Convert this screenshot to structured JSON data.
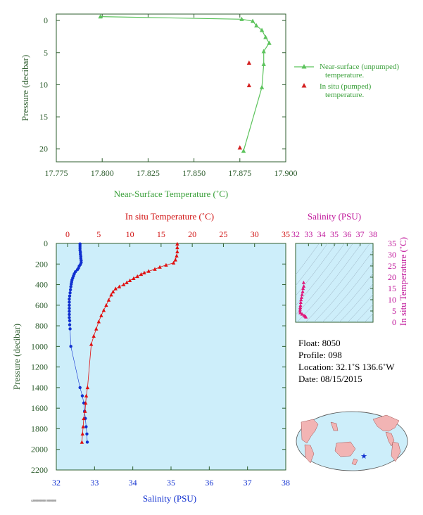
{
  "chart_data": [
    {
      "type": "line",
      "xlabel": "Near-Surface Temperature (˚C)",
      "ylabel": "Pressure (decibar)",
      "xlim": [
        17.775,
        17.9
      ],
      "ylim": [
        22,
        -1
      ],
      "xticks": [
        "17.775",
        "17.800",
        "17.825",
        "17.850",
        "17.875",
        "17.900"
      ],
      "yticks": [
        "0",
        "5",
        "10",
        "15",
        "20"
      ],
      "legend_position": "right",
      "series": [
        {
          "name": "Near-surface (unpumped) temperature.",
          "color": "#5cc35c",
          "marker": "triangle",
          "points": [
            {
              "t": 17.799,
              "p": -0.6
            },
            {
              "t": 17.876,
              "p": -0.2
            },
            {
              "t": 17.882,
              "p": 0.1
            },
            {
              "t": 17.884,
              "p": 0.8
            },
            {
              "t": 17.887,
              "p": 1.5
            },
            {
              "t": 17.889,
              "p": 2.6
            },
            {
              "t": 17.891,
              "p": 3.5
            },
            {
              "t": 17.888,
              "p": 4.8
            },
            {
              "t": 17.888,
              "p": 6.8
            },
            {
              "t": 17.887,
              "p": 10.4
            },
            {
              "t": 17.877,
              "p": 20.3
            }
          ]
        },
        {
          "name": "In situ (pumped) temperature.",
          "color": "#d42020",
          "marker": "triangle",
          "points": [
            {
              "t": 17.88,
              "p": 6.6
            },
            {
              "t": 17.88,
              "p": 10.1
            },
            {
              "t": 17.875,
              "p": 19.8
            }
          ]
        }
      ]
    },
    {
      "type": "line",
      "xlabel": "Salinity (PSU)",
      "x2label": "In situ Temperature (˚C)",
      "ylabel": "Pressure (decibar)",
      "xlim": [
        32,
        38
      ],
      "x2lim": [
        0,
        35
      ],
      "ylim": [
        2200,
        0
      ],
      "xticks": [
        "32",
        "33",
        "34",
        "35",
        "36",
        "37",
        "38"
      ],
      "x2ticks": [
        "0",
        "5",
        "10",
        "15",
        "20",
        "25",
        "30",
        "35"
      ],
      "yticks": [
        "0",
        "200",
        "400",
        "600",
        "800",
        "1000",
        "1200",
        "1400",
        "1600",
        "1800",
        "2000",
        "2200"
      ],
      "series": [
        {
          "name": "Temperature",
          "color": "#e01010",
          "marker": "triangle",
          "points": [
            [
              17.6,
              5
            ],
            [
              17.6,
              40
            ],
            [
              17.6,
              80
            ],
            [
              17.5,
              120
            ],
            [
              17.3,
              160
            ],
            [
              17.0,
              190
            ],
            [
              15.8,
              210
            ],
            [
              14.8,
              230
            ],
            [
              14.0,
              250
            ],
            [
              13.0,
              270
            ],
            [
              12.3,
              285
            ],
            [
              11.8,
              300
            ],
            [
              11.2,
              320
            ],
            [
              10.6,
              340
            ],
            [
              10.0,
              360
            ],
            [
              9.5,
              380
            ],
            [
              9.0,
              400
            ],
            [
              8.3,
              420
            ],
            [
              7.7,
              440
            ],
            [
              7.3,
              470
            ],
            [
              7.0,
              500
            ],
            [
              6.6,
              550
            ],
            [
              6.2,
              600
            ],
            [
              5.8,
              650
            ],
            [
              5.4,
              700
            ],
            [
              5.0,
              760
            ],
            [
              4.6,
              830
            ],
            [
              4.2,
              900
            ],
            [
              3.8,
              980
            ],
            [
              3.2,
              1400
            ],
            [
              3.0,
              1480
            ],
            [
              2.9,
              1550
            ],
            [
              2.8,
              1630
            ],
            [
              2.6,
              1700
            ],
            [
              2.5,
              1780
            ],
            [
              2.4,
              1850
            ],
            [
              2.3,
              1930
            ]
          ]
        },
        {
          "name": "Salinity",
          "color": "#1030d0",
          "marker": "circle",
          "points": [
            [
              32.62,
              5
            ],
            [
              32.62,
              25
            ],
            [
              32.62,
              45
            ],
            [
              32.62,
              65
            ],
            [
              32.63,
              85
            ],
            [
              32.63,
              105
            ],
            [
              32.64,
              125
            ],
            [
              32.64,
              145
            ],
            [
              32.65,
              165
            ],
            [
              32.65,
              185
            ],
            [
              32.63,
              205
            ],
            [
              32.6,
              220
            ],
            [
              32.58,
              240
            ],
            [
              32.55,
              255
            ],
            [
              32.5,
              275
            ],
            [
              32.47,
              295
            ],
            [
              32.45,
              315
            ],
            [
              32.43,
              335
            ],
            [
              32.41,
              355
            ],
            [
              32.4,
              375
            ],
            [
              32.39,
              395
            ],
            [
              32.38,
              420
            ],
            [
              32.37,
              450
            ],
            [
              32.36,
              480
            ],
            [
              32.35,
              510
            ],
            [
              32.34,
              540
            ],
            [
              32.34,
              570
            ],
            [
              32.34,
              600
            ],
            [
              32.34,
              630
            ],
            [
              32.34,
              660
            ],
            [
              32.34,
              690
            ],
            [
              32.34,
              720
            ],
            [
              32.35,
              750
            ],
            [
              32.35,
              790
            ],
            [
              32.36,
              830
            ],
            [
              32.38,
              1000
            ],
            [
              32.62,
              1400
            ],
            [
              32.68,
              1480
            ],
            [
              32.72,
              1550
            ],
            [
              32.74,
              1630
            ],
            [
              32.76,
              1700
            ],
            [
              32.78,
              1780
            ],
            [
              32.8,
              1850
            ],
            [
              32.81,
              1930
            ]
          ]
        }
      ]
    },
    {
      "type": "scatter",
      "xlabel": "Salinity (PSU)",
      "ylabel": "In situ Temperature (˚C)",
      "xlim": [
        32,
        38
      ],
      "ylim": [
        0,
        35
      ],
      "xticks": [
        "32",
        "33",
        "34",
        "35",
        "36",
        "37",
        "38"
      ],
      "yticks": [
        "0",
        "5",
        "10",
        "15",
        "20",
        "25",
        "30",
        "35"
      ],
      "color": "#e0187a",
      "points": [
        [
          32.62,
          17.6
        ],
        [
          32.63,
          16.0
        ],
        [
          32.58,
          15.0
        ],
        [
          32.55,
          13.6
        ],
        [
          32.5,
          12.3
        ],
        [
          32.46,
          11.0
        ],
        [
          32.42,
          10.0
        ],
        [
          32.4,
          8.8
        ],
        [
          32.38,
          7.5
        ],
        [
          32.36,
          6.6
        ],
        [
          32.35,
          5.8
        ],
        [
          32.34,
          5.0
        ],
        [
          32.36,
          4.2
        ],
        [
          32.5,
          3.6
        ],
        [
          32.65,
          3.0
        ],
        [
          32.75,
          2.6
        ],
        [
          32.8,
          2.3
        ]
      ]
    }
  ],
  "float_info": {
    "float": "Float:  8050",
    "profile": "Profile:  098",
    "location": "Location:  32.1˚S  136.6˚W",
    "date": "Date:  08/15/2015"
  },
  "footer_code": "A000000000 0000000"
}
